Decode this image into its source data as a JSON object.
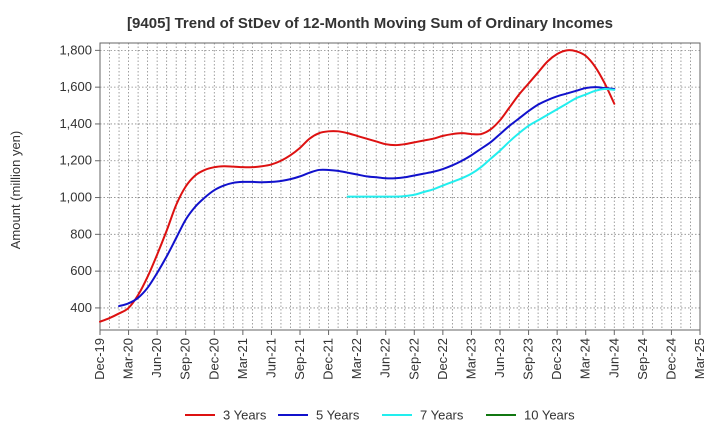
{
  "chart_data": {
    "type": "line",
    "title": "[9405]  Trend of StDev of 12-Month Moving Sum of Ordinary Incomes",
    "xlabel": "",
    "ylabel": "Amount (million yen)",
    "ylim": [
      280,
      1840
    ],
    "yticks": [
      400,
      600,
      800,
      1000,
      1200,
      1400,
      1600,
      1800
    ],
    "ytick_labels": [
      "400",
      "600",
      "800",
      "1,000",
      "1,200",
      "1,400",
      "1,600",
      "1,800"
    ],
    "xticks": [
      "Dec-19",
      "Mar-20",
      "Jun-20",
      "Sep-20",
      "Dec-20",
      "Mar-21",
      "Jun-21",
      "Sep-21",
      "Dec-21",
      "Mar-22",
      "Jun-22",
      "Sep-22",
      "Dec-22",
      "Mar-23",
      "Jun-23",
      "Sep-23",
      "Dec-23",
      "Mar-24",
      "Jun-24",
      "Sep-24",
      "Dec-24",
      "Mar-25"
    ],
    "grid": true,
    "legend_position": "bottom",
    "series": [
      {
        "name": "3 Years",
        "color": "#dd1111",
        "points": [
          [
            0,
            325
          ],
          [
            1,
            345
          ],
          [
            2,
            370
          ],
          [
            3,
            400
          ],
          [
            4,
            470
          ],
          [
            5,
            570
          ],
          [
            6,
            690
          ],
          [
            7,
            820
          ],
          [
            8,
            960
          ],
          [
            9,
            1060
          ],
          [
            10,
            1120
          ],
          [
            11,
            1150
          ],
          [
            12,
            1165
          ],
          [
            13,
            1170
          ],
          [
            14,
            1168
          ],
          [
            15,
            1165
          ],
          [
            16,
            1165
          ],
          [
            17,
            1170
          ],
          [
            18,
            1180
          ],
          [
            19,
            1200
          ],
          [
            20,
            1230
          ],
          [
            21,
            1270
          ],
          [
            22,
            1320
          ],
          [
            23,
            1350
          ],
          [
            24,
            1360
          ],
          [
            25,
            1360
          ],
          [
            26,
            1350
          ],
          [
            27,
            1335
          ],
          [
            28,
            1320
          ],
          [
            29,
            1305
          ],
          [
            30,
            1290
          ],
          [
            31,
            1285
          ],
          [
            32,
            1290
          ],
          [
            33,
            1300
          ],
          [
            34,
            1310
          ],
          [
            35,
            1320
          ],
          [
            36,
            1335
          ],
          [
            37,
            1345
          ],
          [
            38,
            1350
          ],
          [
            39,
            1345
          ],
          [
            40,
            1345
          ],
          [
            41,
            1370
          ],
          [
            42,
            1420
          ],
          [
            43,
            1490
          ],
          [
            44,
            1560
          ],
          [
            45,
            1620
          ],
          [
            46,
            1680
          ],
          [
            47,
            1740
          ],
          [
            48,
            1780
          ],
          [
            49,
            1800
          ],
          [
            50,
            1795
          ],
          [
            51,
            1770
          ],
          [
            52,
            1710
          ],
          [
            53,
            1620
          ],
          [
            54,
            1510
          ]
        ]
      },
      {
        "name": "5 Years",
        "color": "#1111cc",
        "points": [
          [
            2,
            410
          ],
          [
            3,
            425
          ],
          [
            4,
            455
          ],
          [
            5,
            510
          ],
          [
            6,
            590
          ],
          [
            7,
            680
          ],
          [
            8,
            780
          ],
          [
            9,
            880
          ],
          [
            10,
            950
          ],
          [
            11,
            1000
          ],
          [
            12,
            1040
          ],
          [
            13,
            1065
          ],
          [
            14,
            1080
          ],
          [
            15,
            1085
          ],
          [
            16,
            1085
          ],
          [
            17,
            1083
          ],
          [
            18,
            1085
          ],
          [
            19,
            1090
          ],
          [
            20,
            1100
          ],
          [
            21,
            1115
          ],
          [
            22,
            1135
          ],
          [
            23,
            1150
          ],
          [
            24,
            1150
          ],
          [
            25,
            1145
          ],
          [
            26,
            1135
          ],
          [
            27,
            1125
          ],
          [
            28,
            1115
          ],
          [
            29,
            1110
          ],
          [
            30,
            1105
          ],
          [
            31,
            1105
          ],
          [
            32,
            1110
          ],
          [
            33,
            1120
          ],
          [
            34,
            1130
          ],
          [
            35,
            1140
          ],
          [
            36,
            1155
          ],
          [
            37,
            1175
          ],
          [
            38,
            1200
          ],
          [
            39,
            1230
          ],
          [
            40,
            1265
          ],
          [
            41,
            1300
          ],
          [
            42,
            1345
          ],
          [
            43,
            1390
          ],
          [
            44,
            1430
          ],
          [
            45,
            1470
          ],
          [
            46,
            1505
          ],
          [
            47,
            1530
          ],
          [
            48,
            1550
          ],
          [
            49,
            1565
          ],
          [
            50,
            1580
          ],
          [
            51,
            1595
          ],
          [
            52,
            1600
          ],
          [
            53,
            1595
          ],
          [
            54,
            1590
          ]
        ]
      },
      {
        "name": "7 Years",
        "color": "#22eeee",
        "points": [
          [
            26,
            1005
          ],
          [
            27,
            1005
          ],
          [
            28,
            1005
          ],
          [
            29,
            1005
          ],
          [
            30,
            1005
          ],
          [
            31,
            1005
          ],
          [
            32,
            1008
          ],
          [
            33,
            1015
          ],
          [
            34,
            1030
          ],
          [
            35,
            1045
          ],
          [
            36,
            1065
          ],
          [
            37,
            1085
          ],
          [
            38,
            1105
          ],
          [
            39,
            1130
          ],
          [
            40,
            1165
          ],
          [
            41,
            1210
          ],
          [
            42,
            1255
          ],
          [
            43,
            1305
          ],
          [
            44,
            1350
          ],
          [
            45,
            1390
          ],
          [
            46,
            1420
          ],
          [
            47,
            1450
          ],
          [
            48,
            1480
          ],
          [
            49,
            1510
          ],
          [
            50,
            1540
          ],
          [
            51,
            1560
          ],
          [
            52,
            1580
          ],
          [
            53,
            1590
          ],
          [
            54,
            1585
          ]
        ]
      },
      {
        "name": "10 Years",
        "color": "#117711",
        "points": []
      }
    ]
  }
}
